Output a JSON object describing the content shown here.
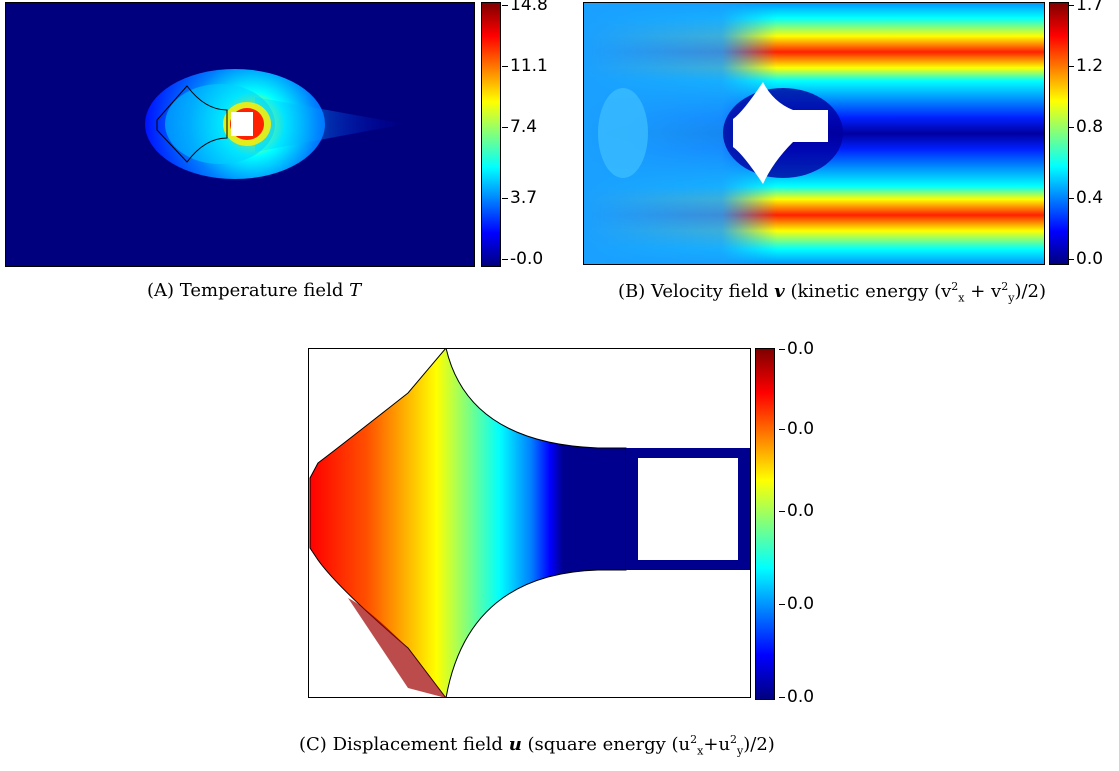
{
  "figure": {
    "panel_a": {
      "caption_tag": "(A)",
      "caption_text": "Temperature field",
      "caption_symbol": "T",
      "colorbar_ticks": [
        "14.8",
        "11.1",
        "7.4",
        "3.7",
        "-0.0"
      ]
    },
    "panel_b": {
      "caption_tag": "(B)",
      "caption_text": "Velocity field",
      "caption_symbol": "v",
      "caption_paren": "(kinetic energy (v",
      "caption_x": "x",
      "caption_plus": " + v",
      "caption_y": "y",
      "caption_end": ")/2)",
      "colorbar_ticks": [
        "1.7",
        "1.2",
        "0.8",
        "0.4",
        "0.0"
      ]
    },
    "panel_c": {
      "caption_tag": "(C)",
      "caption_text": "Displacement field",
      "caption_symbol": "u",
      "caption_paren": "(square energy (u",
      "caption_x": "x",
      "caption_plus": "+u",
      "caption_y": "y",
      "caption_end": ")/2)",
      "colorbar_ticks": [
        "0.0",
        "0.0",
        "0.0",
        "0.0",
        "0.0"
      ]
    },
    "colormap": [
      "#00007f",
      "#0000ff",
      "#007fff",
      "#00ffff",
      "#7fff7f",
      "#ffff00",
      "#ff7f00",
      "#ff0000",
      "#7f0000"
    ]
  }
}
